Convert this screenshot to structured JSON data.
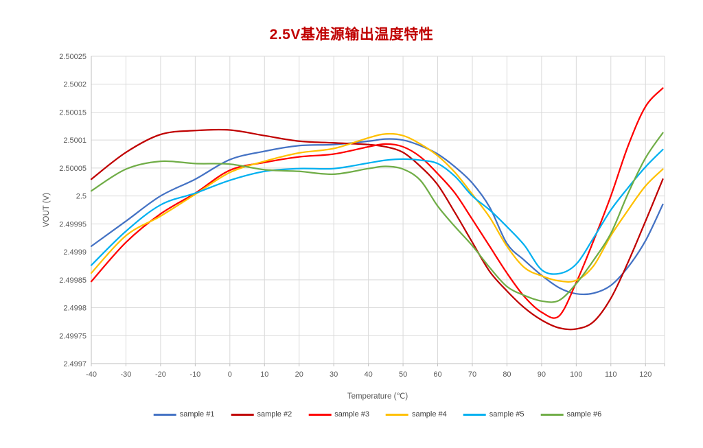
{
  "page": {
    "background": "#ffffff"
  },
  "chart_data": {
    "type": "line",
    "title": "2.5V基准源输出温度特性",
    "title_color": "#C00000",
    "xlabel": "Temperature (℃)",
    "ylabel": "VOUT (V)",
    "x_range": [
      -40,
      125.5
    ],
    "y_range": [
      2.4997,
      2.50025
    ],
    "x_ticks": [
      -40,
      -30,
      -20,
      -10,
      0,
      10,
      20,
      30,
      40,
      50,
      60,
      70,
      80,
      90,
      100,
      110,
      120
    ],
    "y_ticks": [
      {
        "value": 2.50025,
        "label": "2.50025"
      },
      {
        "value": 2.5002,
        "label": "2.5002"
      },
      {
        "value": 2.50015,
        "label": "2.50015"
      },
      {
        "value": 2.5001,
        "label": "2.5001"
      },
      {
        "value": 2.50005,
        "label": "2.50005"
      },
      {
        "value": 2.5,
        "label": "2.5"
      },
      {
        "value": 2.49995,
        "label": "2.49995"
      },
      {
        "value": 2.4999,
        "label": "2.4999"
      },
      {
        "value": 2.49985,
        "label": "2.49985"
      },
      {
        "value": 2.4998,
        "label": "2.4998"
      },
      {
        "value": 2.49975,
        "label": "2.49975"
      },
      {
        "value": 2.4997,
        "label": "2.4997"
      }
    ],
    "grid": true,
    "legend_position": "bottom",
    "x": [
      -40,
      -30,
      -20,
      -10,
      0,
      10,
      20,
      30,
      40,
      45,
      50,
      55,
      60,
      65,
      70,
      75,
      80,
      85,
      90,
      95,
      100,
      105,
      110,
      115,
      120,
      125
    ],
    "series": [
      {
        "name": "sample #1",
        "color": "#4472C4",
        "values": [
          2.49991,
          2.499955,
          2.5,
          2.50003,
          2.500065,
          2.50008,
          2.50009,
          2.500092,
          2.500098,
          2.500102,
          2.5001,
          2.50009,
          2.500075,
          2.500052,
          2.500023,
          2.49998,
          2.499915,
          2.499885,
          2.499858,
          2.499836,
          2.499825,
          2.499826,
          2.49984,
          2.499873,
          2.49992,
          2.499985
        ]
      },
      {
        "name": "sample #2",
        "color": "#C00000",
        "values": [
          2.50003,
          2.500078,
          2.50011,
          2.500117,
          2.500118,
          2.500108,
          2.500098,
          2.500095,
          2.500092,
          2.500088,
          2.500078,
          2.500053,
          2.50002,
          2.49997,
          2.499917,
          2.499865,
          2.49983,
          2.4998,
          2.499778,
          2.499764,
          2.499762,
          2.499775,
          2.499817,
          2.499882,
          2.499955,
          2.50003
        ]
      },
      {
        "name": "sample #3",
        "color": "#FF0000",
        "values": [
          2.499847,
          2.499917,
          2.499968,
          2.500005,
          2.500046,
          2.50006,
          2.50007,
          2.500075,
          2.500088,
          2.500093,
          2.500088,
          2.50007,
          2.50004,
          2.500005,
          2.499958,
          2.49991,
          2.499862,
          2.49982,
          2.499792,
          2.499785,
          2.499845,
          2.49992,
          2.5,
          2.50009,
          2.50016,
          2.500193
        ]
      },
      {
        "name": "sample #4",
        "color": "#FFC000",
        "values": [
          2.499862,
          2.499929,
          2.499964,
          2.500003,
          2.500042,
          2.500062,
          2.500077,
          2.500085,
          2.500104,
          2.500111,
          2.500108,
          2.500093,
          2.500072,
          2.500042,
          2.500003,
          2.499962,
          2.49991,
          2.499872,
          2.499857,
          2.499848,
          2.499849,
          2.499875,
          2.499929,
          2.499975,
          2.500018,
          2.500048
        ]
      },
      {
        "name": "sample #5",
        "color": "#00B0F0",
        "values": [
          2.499876,
          2.499937,
          2.499984,
          2.500005,
          2.500028,
          2.500044,
          2.500049,
          2.500049,
          2.500059,
          2.500064,
          2.500066,
          2.500064,
          2.500058,
          2.500035,
          2.5,
          2.499975,
          2.499945,
          2.499912,
          2.499868,
          2.499861,
          2.499878,
          2.499925,
          2.499975,
          2.500015,
          2.500052,
          2.500083
        ]
      },
      {
        "name": "sample #6",
        "color": "#70AD47",
        "values": [
          2.500009,
          2.500048,
          2.500062,
          2.500058,
          2.500057,
          2.500047,
          2.500044,
          2.500039,
          2.500049,
          2.500053,
          2.500048,
          2.500028,
          2.499982,
          2.499945,
          2.499911,
          2.499872,
          2.499838,
          2.499822,
          2.499812,
          2.499813,
          2.499843,
          2.499885,
          2.499933,
          2.500005,
          2.500068,
          2.500113
        ]
      }
    ],
    "colors": {
      "gridline": "#D9D9D9",
      "axis_line": "#BFBFBF",
      "tick_label": "#595959"
    }
  }
}
